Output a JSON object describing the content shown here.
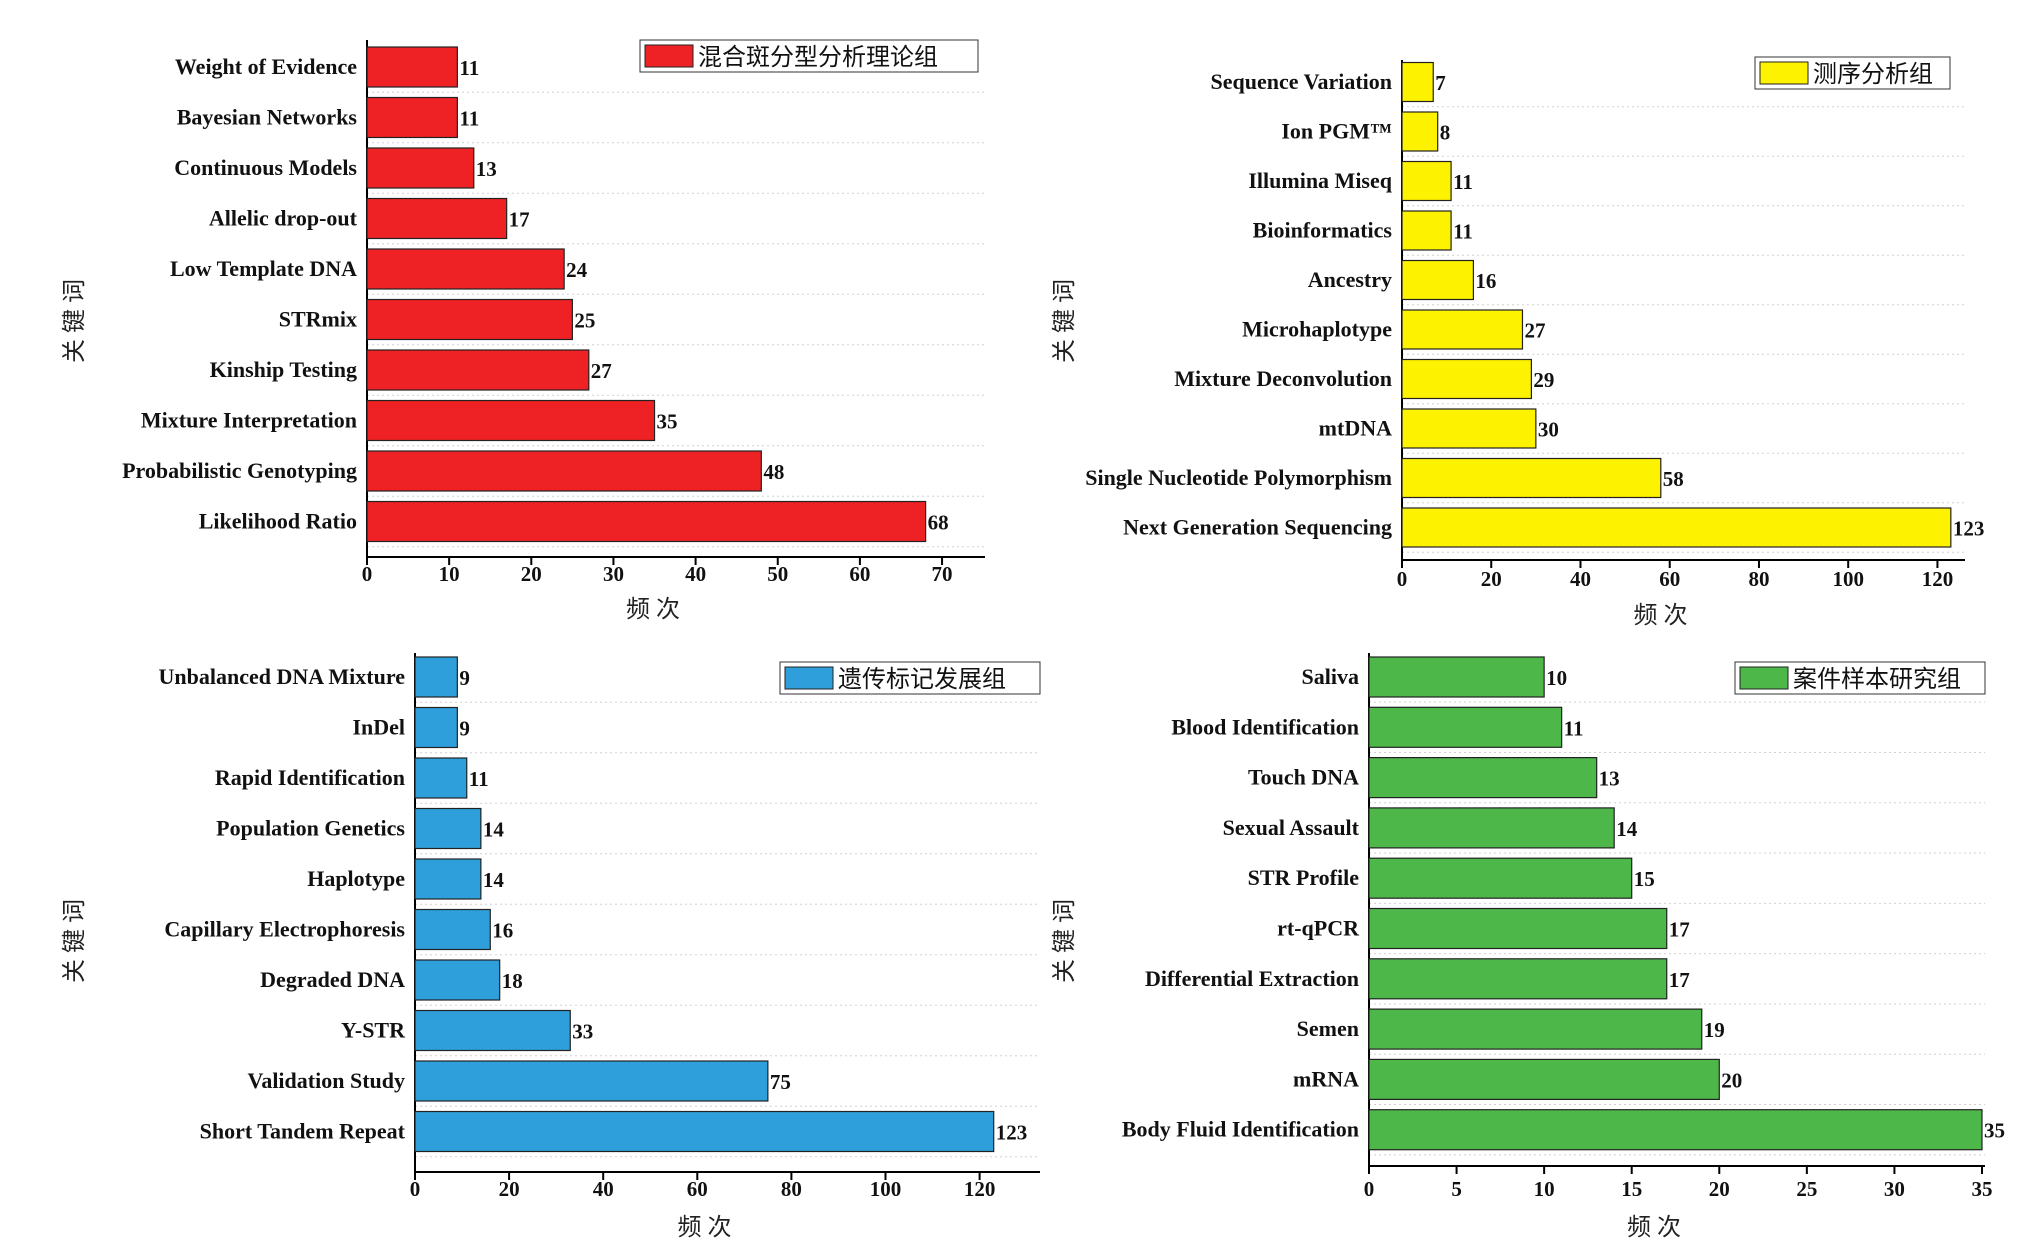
{
  "chart_data": [
    {
      "type": "bar",
      "orientation": "horizontal",
      "legend": "混合斑分型分析理论组",
      "legend_placement": "top-right",
      "color": "#ee2124",
      "xlabel": "频次",
      "ylabel": "关键词",
      "xlim": [
        0,
        75
      ],
      "xticks": [
        0,
        10,
        20,
        30,
        40,
        50,
        60,
        70
      ],
      "grid": "horizontal dotted",
      "categories": [
        "Weight of Evidence",
        "Bayesian Networks",
        "Continuous Models",
        "Allelic drop-out",
        "Low Template DNA",
        "STRmix",
        "Kinship Testing",
        "Mixture Interpretation",
        "Probabilistic Genotyping",
        "Likelihood Ratio"
      ],
      "values": [
        11,
        11,
        13,
        17,
        24,
        25,
        27,
        35,
        48,
        68
      ]
    },
    {
      "type": "bar",
      "orientation": "horizontal",
      "legend": "测序分析组",
      "legend_placement": "top-right",
      "color": "#fdf200",
      "xlabel": "频次",
      "ylabel": "关键词",
      "xlim": [
        0,
        125
      ],
      "xticks": [
        0,
        20,
        40,
        60,
        80,
        100,
        120
      ],
      "grid": "horizontal dotted",
      "categories": [
        "Sequence Variation",
        "Ion PGM™",
        "Illumina Miseq",
        "Bioinformatics",
        "Ancestry",
        "Microhaplotype",
        "Mixture Deconvolution",
        "mtDNA",
        "Single Nucleotide Polymorphism",
        "Next Generation Sequencing"
      ],
      "values": [
        7,
        8,
        11,
        11,
        16,
        27,
        29,
        30,
        58,
        123
      ]
    },
    {
      "type": "bar",
      "orientation": "horizontal",
      "legend": "遗传标记发展组",
      "legend_placement": "top-right",
      "color": "#2e9fdb",
      "xlabel": "频次",
      "ylabel": "关键词",
      "xlim": [
        0,
        132
      ],
      "xticks": [
        0,
        20,
        40,
        60,
        80,
        100,
        120
      ],
      "grid": "horizontal dotted",
      "categories": [
        "Unbalanced DNA Mixture",
        "InDel",
        "Rapid Identification",
        "Population Genetics",
        "Haplotype",
        "Capillary Electrophoresis",
        "Degraded DNA",
        "Y-STR",
        "Validation Study",
        "Short Tandem Repeat"
      ],
      "values": [
        9,
        9,
        11,
        14,
        14,
        16,
        18,
        33,
        75,
        123
      ]
    },
    {
      "type": "bar",
      "orientation": "horizontal",
      "legend": "案件样本研究组",
      "legend_placement": "top-right",
      "color": "#4db74a",
      "xlabel": "频次",
      "ylabel": "关键词",
      "xlim": [
        0,
        35
      ],
      "xticks": [
        0,
        5,
        10,
        15,
        20,
        25,
        30,
        35
      ],
      "grid": "horizontal dotted",
      "categories": [
        "Saliva",
        "Blood Identification",
        "Touch DNA",
        "Sexual Assault",
        "STR Profile",
        "rt-qPCR",
        "Differential Extraction",
        "Semen",
        "mRNA",
        "Body Fluid Identification"
      ],
      "values": [
        10,
        11,
        13,
        14,
        15,
        17,
        17,
        19,
        20,
        35
      ]
    }
  ]
}
